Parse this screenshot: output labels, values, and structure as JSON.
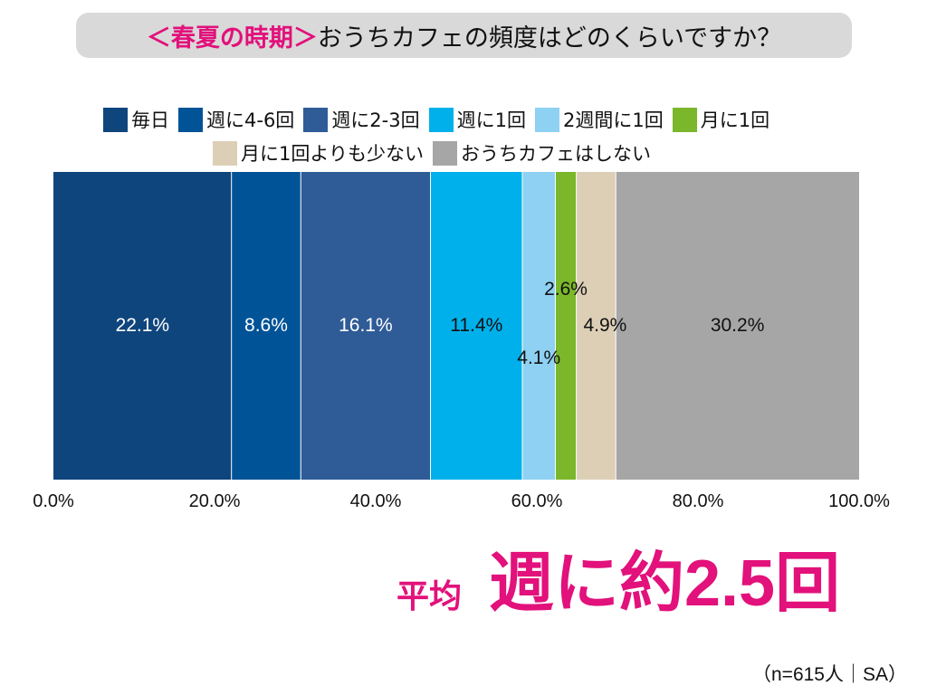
{
  "title": {
    "highlight": "＜春夏の時期＞",
    "question": "おうちカフェの頻度はどのくらいですか？"
  },
  "chart_data": {
    "type": "stacked-bar-horizontal",
    "categories": [
      "毎日",
      "週に4-6回",
      "週に2-3回",
      "週に1回",
      "2週間に1回",
      "月に1回",
      "月に1回よりも少ない",
      "おうちカフェはしない"
    ],
    "values": [
      22.1,
      8.6,
      16.1,
      11.4,
      4.1,
      2.6,
      4.9,
      30.2
    ],
    "value_labels": [
      "22.1%",
      "8.6%",
      "16.1%",
      "11.4%",
      "4.1%",
      "2.6%",
      "4.9%",
      "30.2%"
    ],
    "colors": [
      "#0f457d",
      "#005397",
      "#2f5c97",
      "#00b0eb",
      "#8ed1f2",
      "#7bb72a",
      "#ddcfb6",
      "#a6a6a6"
    ],
    "label_colors": [
      "#ffffff",
      "#ffffff",
      "#ffffff",
      "#111111",
      "#111111",
      "#111111",
      "#111111",
      "#111111"
    ],
    "xlim": [
      0,
      100
    ],
    "x_ticks": [
      0,
      20,
      40,
      60,
      80,
      100
    ],
    "x_tick_labels": [
      "0.0%",
      "20.0%",
      "40.0%",
      "60.0%",
      "80.0%",
      "100.0%"
    ],
    "legend_position": "top"
  },
  "summary": {
    "label": "平均",
    "value": "週に約2.5回"
  },
  "footnote": "（n=615人｜SA）"
}
